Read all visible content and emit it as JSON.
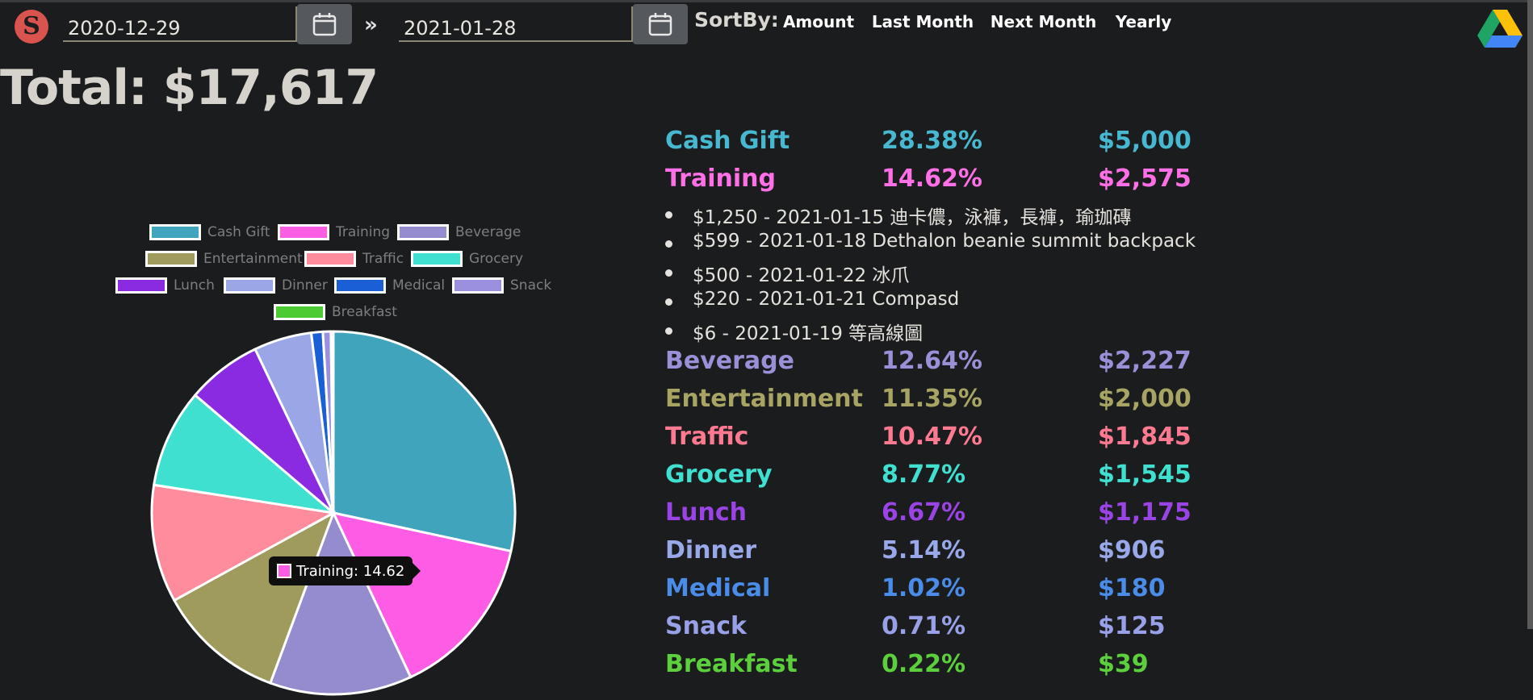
{
  "header": {
    "start_date": "2020-12-29",
    "end_date": "2021-01-28",
    "sortby_label": "SortBy:",
    "buttons": [
      {
        "label": "Amount",
        "color": "#d39e00"
      },
      {
        "label": "Last Month",
        "color": "#0068d6"
      },
      {
        "label": "Next Month",
        "color": "#138496"
      },
      {
        "label": "Yearly",
        "color": "#1e8e3e"
      }
    ]
  },
  "total_label": "Total: $17,617",
  "chart_data": {
    "type": "pie",
    "categories": [
      "Cash Gift",
      "Training",
      "Beverage",
      "Entertainment",
      "Traffic",
      "Grocery",
      "Lunch",
      "Dinner",
      "Medical",
      "Snack",
      "Breakfast"
    ],
    "values": [
      28.38,
      14.62,
      12.64,
      11.35,
      10.47,
      8.77,
      6.67,
      5.14,
      1.02,
      0.71,
      0.22
    ],
    "colors": [
      "#40a4bd",
      "#ff5ce6",
      "#948ccf",
      "#9e9b5c",
      "#ff8c9c",
      "#40e0d0",
      "#8a2be2",
      "#9aa6e6",
      "#1a5fd6",
      "#9b8fe0",
      "#4ccc32"
    ],
    "legend_position": "top",
    "tooltip": {
      "label": "Training: 14.62"
    }
  },
  "categories": [
    {
      "name": "Cash Gift",
      "percent": "28.38%",
      "amount": "$5,000",
      "color": "#48b8d0"
    },
    {
      "name": "Training",
      "percent": "14.62%",
      "amount": "$2,575",
      "color": "#ff70e6"
    },
    {
      "name": "Beverage",
      "percent": "12.64%",
      "amount": "$2,227",
      "color": "#9a90d8"
    },
    {
      "name": "Entertainment",
      "percent": "11.35%",
      "amount": "$2,000",
      "color": "#a8a464"
    },
    {
      "name": "Traffic",
      "percent": "10.47%",
      "amount": "$1,845",
      "color": "#ff7a90"
    },
    {
      "name": "Grocery",
      "percent": "8.77%",
      "amount": "$1,545",
      "color": "#40e0d0"
    },
    {
      "name": "Lunch",
      "percent": "6.67%",
      "amount": "$1,175",
      "color": "#9a44e6"
    },
    {
      "name": "Dinner",
      "percent": "5.14%",
      "amount": "$906",
      "color": "#98a8e8"
    },
    {
      "name": "Medical",
      "percent": "1.02%",
      "amount": "$180",
      "color": "#4a8ce8"
    },
    {
      "name": "Snack",
      "percent": "0.71%",
      "amount": "$125",
      "color": "#98a0e8"
    },
    {
      "name": "Breakfast",
      "percent": "0.22%",
      "amount": "$39",
      "color": "#5cd03c"
    }
  ],
  "training_details": [
    "$1,250 - 2021-01-15 迪卡儂，泳褲，長褲，瑜珈磚",
    "$599 - 2021-01-18 Dethalon beanie summit backpack",
    "$500 - 2021-01-22 冰爪",
    "$220 - 2021-01-21 Compasd",
    "$6 - 2021-01-19 等高線圖"
  ]
}
